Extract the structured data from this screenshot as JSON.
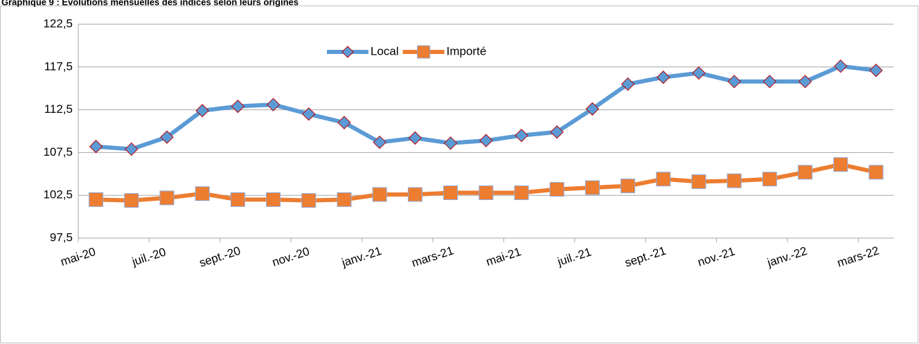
{
  "chart_data": {
    "type": "line",
    "title": "Graphique 9 : Evolutions mensuelles des indices selon leurs origines",
    "categories": [
      "mai-20",
      null,
      "juil.-20",
      null,
      "sept.-20",
      null,
      "nov.-20",
      null,
      "janv.-21",
      null,
      "mars-21",
      null,
      "mai-21",
      null,
      "juil.-21",
      null,
      "sept.-21",
      null,
      "nov.-21",
      null,
      "janv.-22",
      null,
      "mars-22"
    ],
    "series": [
      {
        "name": "Local",
        "color": "#5b9bd5",
        "marker": "diamond",
        "marker_edge": "#c00000",
        "values": [
          108.2,
          107.9,
          109.3,
          112.4,
          112.9,
          113.1,
          112.0,
          111.0,
          108.7,
          109.2,
          108.6,
          108.9,
          109.5,
          109.9,
          112.6,
          115.5,
          116.3,
          116.8,
          115.8,
          115.8,
          115.8,
          117.6,
          117.1
        ]
      },
      {
        "name": "Importé",
        "color": "#ed7d31",
        "marker": "square",
        "marker_edge": "#8faadc",
        "values": [
          102.0,
          101.9,
          102.2,
          102.7,
          102.0,
          102.0,
          101.9,
          102.0,
          102.6,
          102.6,
          102.8,
          102.8,
          102.8,
          103.2,
          103.4,
          103.6,
          104.4,
          104.1,
          104.2,
          104.4,
          105.2,
          106.1,
          105.2
        ]
      }
    ],
    "ylim": [
      97.5,
      122.5
    ],
    "yticks": [
      {
        "value": 97.5,
        "label": "97,5"
      },
      {
        "value": 102.5,
        "label": "102,5"
      },
      {
        "value": 107.5,
        "label": "107,5"
      },
      {
        "value": 112.5,
        "label": "112,5"
      },
      {
        "value": 117.5,
        "label": "117,5"
      },
      {
        "value": 122.5,
        "label": "122,5"
      }
    ],
    "grid": true,
    "legend": "top"
  }
}
